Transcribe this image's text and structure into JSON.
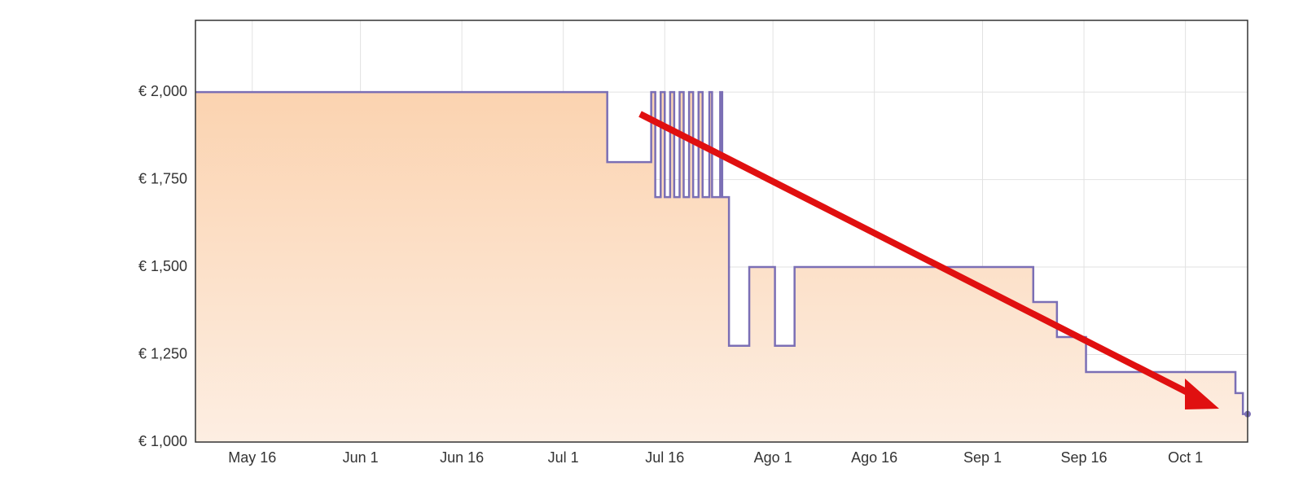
{
  "chart_data": {
    "type": "line",
    "step": true,
    "color": "#7b6fb5",
    "fill": [
      "#fbd3b0",
      "#fdeee2"
    ],
    "grid": true,
    "xlim": [
      127.6,
      283.2
    ],
    "ylim": [
      1000,
      2205
    ],
    "yticks": [
      {
        "value": 1000,
        "label": "€ 1,000"
      },
      {
        "value": 1250,
        "label": "€ 1,250"
      },
      {
        "value": 1500,
        "label": "€ 1,500"
      },
      {
        "value": 1750,
        "label": "€ 1,750"
      },
      {
        "value": 2000,
        "label": "€ 2,000"
      }
    ],
    "xticks": [
      {
        "value": 136,
        "label": "May 16"
      },
      {
        "value": 152,
        "label": "Jun 1"
      },
      {
        "value": 167,
        "label": "Jun 16"
      },
      {
        "value": 182,
        "label": "Jul 1"
      },
      {
        "value": 197,
        "label": "Jul 16"
      },
      {
        "value": 213,
        "label": "Ago 1"
      },
      {
        "value": 228,
        "label": "Ago 16"
      },
      {
        "value": 244,
        "label": "Sep 1"
      },
      {
        "value": 259,
        "label": "Sep 16"
      },
      {
        "value": 274,
        "label": "Oct 1"
      }
    ],
    "x": [
      127.6,
      188.5,
      188.5,
      195,
      195,
      195.6,
      195.6,
      196.4,
      196.4,
      197,
      197,
      197.8,
      197.8,
      198.4,
      198.4,
      199.2,
      199.2,
      199.8,
      199.8,
      200.6,
      200.6,
      201.2,
      201.2,
      202,
      202,
      202.6,
      202.6,
      203.6,
      203.6,
      204,
      204,
      205.2,
      205.2,
      205.5,
      205.5,
      206.5,
      206.5,
      209.5,
      209.5,
      213.3,
      213.3,
      216.2,
      216.2,
      251.5,
      251.5,
      255,
      255,
      259.3,
      259.3,
      281.4,
      281.4,
      282.5,
      282.5,
      283.2
    ],
    "values": [
      2000,
      2000,
      1800,
      1800,
      2000,
      2000,
      1700,
      1700,
      2000,
      2000,
      1700,
      1700,
      2000,
      2000,
      1700,
      1700,
      2000,
      2000,
      1700,
      1700,
      2000,
      2000,
      1700,
      1700,
      2000,
      2000,
      1700,
      1700,
      2000,
      2000,
      1700,
      1700,
      2000,
      2000,
      1700,
      1700,
      1275,
      1275,
      1500,
      1500,
      1275,
      1275,
      1500,
      1500,
      1400,
      1400,
      1300,
      1300,
      1200,
      1200,
      1140,
      1140,
      1080,
      1080
    ]
  }
}
